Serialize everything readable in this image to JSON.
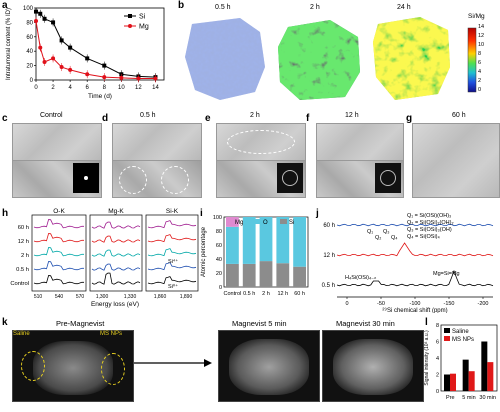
{
  "panel_labels": {
    "a": "a",
    "b": "b",
    "c": "c",
    "d": "d",
    "e": "e",
    "f": "f",
    "g": "g",
    "h": "h",
    "i": "i",
    "j": "j",
    "k": "k",
    "l": "l"
  },
  "panel_a": {
    "ylabel": "Intratumoral content (% ID)",
    "xlabel": "Time (d)",
    "legend": [
      "Si",
      "Mg"
    ],
    "yticks": [
      "100",
      "80",
      "60",
      "40",
      "20",
      "0"
    ],
    "xticks": [
      "0",
      "2",
      "4",
      "6",
      "8",
      "10",
      "12",
      "14"
    ]
  },
  "panel_b": {
    "times": [
      "0.5 h",
      "2 h",
      "24 h"
    ],
    "colorbar_title": "Si/Mg",
    "colorbar_ticks": [
      "14",
      "12",
      "10",
      "8",
      "6",
      "4",
      "2",
      "0"
    ]
  },
  "panel_tem": {
    "c": "Control",
    "d": "0.5 h",
    "e": "2 h",
    "f": "12 h",
    "g": "60 h"
  },
  "panel_h": {
    "titles": [
      "O-K",
      "Mg-K",
      "Si-K"
    ],
    "rows": [
      "60 h",
      "12 h",
      "2 h",
      "0.5 h",
      "Control"
    ],
    "ticks_o": [
      "510",
      "540",
      "570"
    ],
    "ticks_mg": [
      "1,300",
      "1,330"
    ],
    "ticks_si": [
      "1,860",
      "1,890"
    ],
    "annot_si4": "Si⁴⁺",
    "annot_si0": "Si⁰⁺",
    "xlabel": "Energy loss (eV)"
  },
  "panel_i": {
    "ylabel": "Atomic percentage",
    "legend": [
      "Mg",
      "O",
      "Si"
    ],
    "yticks": [
      "100",
      "80",
      "60",
      "40",
      "20",
      "0"
    ],
    "categories": [
      "Control",
      "0.5 h",
      "2 h",
      "12 h",
      "60 h"
    ]
  },
  "panel_j": {
    "labels": [
      "60 h",
      "12 h",
      "0.5 h"
    ],
    "q_labels": [
      "Q₁ = Si(OSi)(OH)₃",
      "Q₂ = Si(OSi)₂(OH)₂",
      "Q₃ = Si(OSi)₃(OH)",
      "Q₄ = Si(OSi)₄"
    ],
    "q_peaks": [
      "Q₁",
      "Q₂",
      "Q₃",
      "Q₄"
    ],
    "h3sio4": "H₄Si(OSi)₄₋ₙ",
    "mgsimg": "Mg=Si=Mg",
    "xticks": [
      "0",
      "-50",
      "-100",
      "-150",
      "-200"
    ],
    "xlabel": "²⁹Si chemical shift (ppm)"
  },
  "panel_k": {
    "titles": [
      "Pre-Magnevist",
      "Magnevist 5 min",
      "Magnevist 30 min"
    ],
    "saline": "Saline",
    "msnps": "MS NPs"
  },
  "panel_l": {
    "legend": [
      "Saline",
      "MS NPs"
    ],
    "ylabel": "Signal intensity (10³ a.u.)",
    "yticks": [
      "8",
      "6",
      "4",
      "2",
      "0"
    ],
    "categories": [
      "Pre",
      "5 min",
      "30 min"
    ]
  },
  "chart_data": [
    {
      "type": "line",
      "x": [
        0,
        0.5,
        1,
        2,
        3,
        4,
        6,
        8,
        10,
        12,
        14
      ],
      "series": [
        {
          "name": "Si",
          "values": [
            95,
            92,
            85,
            80,
            55,
            45,
            30,
            20,
            8,
            5,
            4
          ]
        },
        {
          "name": "Mg",
          "values": [
            82,
            45,
            25,
            30,
            18,
            14,
            8,
            4,
            3,
            2,
            2
          ]
        }
      ],
      "xlabel": "Time (d)",
      "ylabel": "Intratumoral content (% ID)",
      "xlim": [
        0,
        15
      ],
      "ylim": [
        0,
        100
      ]
    },
    {
      "type": "bar",
      "categories": [
        "Control",
        "0.5 h",
        "2 h",
        "12 h",
        "60 h"
      ],
      "series": [
        {
          "name": "Si",
          "values": [
            33,
            33,
            37,
            34,
            29
          ]
        },
        {
          "name": "O",
          "values": [
            53,
            67,
            63,
            66,
            71
          ]
        },
        {
          "name": "Mg",
          "values": [
            14,
            0,
            0,
            0,
            0
          ]
        }
      ],
      "ylabel": "Atomic percentage",
      "ylim": [
        0,
        100
      ]
    },
    {
      "type": "bar",
      "categories": [
        "Pre",
        "5 min",
        "30 min"
      ],
      "series": [
        {
          "name": "Saline",
          "values": [
            2.0,
            3.8,
            6.0
          ]
        },
        {
          "name": "MS NPs",
          "values": [
            2.1,
            2.4,
            3.5
          ]
        }
      ],
      "ylabel": "Signal intensity (10³ a.u.)",
      "ylim": [
        0,
        8
      ]
    }
  ]
}
